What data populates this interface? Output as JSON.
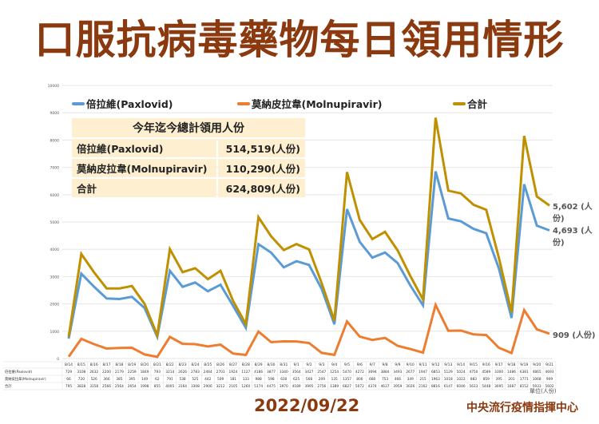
{
  "title": "口服抗病毒藥物每日領用情形",
  "date": "2022/09/22",
  "organization": "中央流行疫情指揮中心",
  "unit_label": "單位(人份)",
  "summary": {
    "header": "今年迄今總計領用人份",
    "rows": [
      {
        "label": "倍拉維(Paxlovid)",
        "value": "514,519(人份)"
      },
      {
        "label": "莫納皮拉韋(Molnupiravir)",
        "value": "110,290(人份)"
      },
      {
        "label": "合計",
        "value": "624,809(人份)"
      }
    ]
  },
  "end_labels": {
    "total": "5,602 (人份)",
    "paxlovid": "4,693 (人份)",
    "molnupiravir": "909 (人份)"
  },
  "colors": {
    "paxlovid": "#5B9BD5",
    "molnupiravir": "#ED7D31",
    "total": "#BF9000",
    "brand": "#8B3A0F"
  },
  "chart_data": {
    "type": "line",
    "title": "口服抗病毒藥物每日領用情形",
    "xlabel": "",
    "ylabel": "",
    "ylim": [
      0,
      10000
    ],
    "yticks": [
      "0",
      "1000",
      "2000",
      "3000",
      "4000",
      "5000",
      "6000",
      "7000",
      "8000",
      "9000",
      "10000"
    ],
    "grid": true,
    "legend_position": "top",
    "categories": [
      "8/14",
      "8/15",
      "8/16",
      "8/17",
      "8/18",
      "8/19",
      "8/20",
      "8/21",
      "8/22",
      "8/23",
      "8/24",
      "8/25",
      "8/26",
      "8/27",
      "8/28",
      "8/29",
      "8/30",
      "8/31",
      "9/1",
      "9/2",
      "9/3",
      "9/4",
      "9/5",
      "9/6",
      "9/7",
      "9/8",
      "9/9",
      "9/10",
      "9/11",
      "9/12",
      "9/13",
      "9/14",
      "9/15",
      "9/16",
      "9/17",
      "9/18",
      "9/19",
      "9/20",
      "9/21"
    ],
    "series": [
      {
        "name": "倍拉維(Paxlovid)",
        "table_label": "倍拉維(Paxlovid)",
        "key": "paxlovid",
        "values": [
          729,
          3108,
          2632,
          2200,
          2179,
          2259,
          1849,
          793,
          3214,
          2626,
          2783,
          2464,
          2703,
          1924,
          1127,
          4186,
          3877,
          3340,
          3564,
          3427,
          2547,
          1254,
          5470,
          4272,
          3694,
          3884,
          3493,
          2677,
          1947,
          6853,
          5129,
          5024,
          4750,
          4589,
          3300,
          1486,
          6381,
          4865,
          4693
        ]
      },
      {
        "name": "莫納皮拉韋(Molnupiravir)",
        "table_label": "莫納皮拉韋(Molnupiravir)",
        "key": "molnupiravir",
        "values": [
          66,
          720,
          526,
          366,
          385,
          395,
          149,
          62,
          791,
          538,
          525,
          442,
          509,
          181,
          133,
          988,
          598,
          630,
          625,
          568,
          209,
          135,
          1357,
          800,
          680,
          753,
          466,
          349,
          215,
          1963,
          1018,
          1022,
          883,
          859,
          395,
          201,
          1771,
          1068,
          909
        ]
      },
      {
        "name": "合計",
        "table_label": "合計",
        "key": "total",
        "values": [
          795,
          3828,
          3158,
          2566,
          2564,
          2654,
          1998,
          855,
          4005,
          3164,
          3308,
          2906,
          3212,
          2105,
          1260,
          5174,
          4475,
          3970,
          4189,
          3995,
          2756,
          1389,
          6827,
          5072,
          4374,
          4637,
          3959,
          3026,
          2162,
          8816,
          6147,
          6046,
          5633,
          5448,
          3695,
          1687,
          8152,
          5933,
          5602
        ]
      }
    ]
  }
}
